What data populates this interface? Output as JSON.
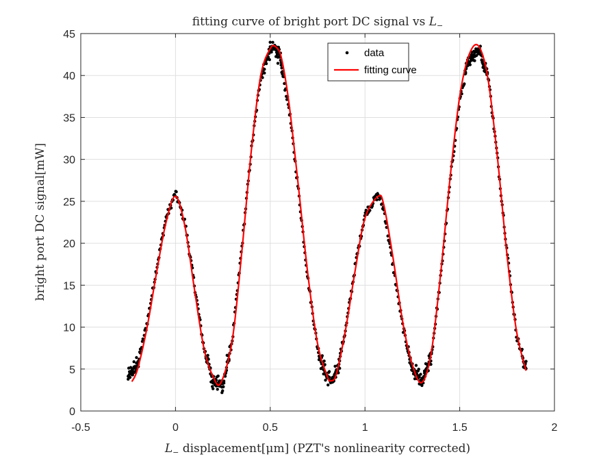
{
  "chart_data": {
    "type": "scatter",
    "title": "fitting curve of bright port DC signal vs",
    "title_symbol": "L",
    "title_symbol_sub": "−",
    "xlabel_symbol": "L",
    "xlabel_symbol_sub": "−",
    "xlabel": " displacement[μm] (PZT's nonlinearity corrected)",
    "ylabel": "bright port DC signal[mW]",
    "xlim": [
      -0.5,
      2
    ],
    "ylim": [
      0,
      45
    ],
    "xticks": [
      -0.5,
      0,
      0.5,
      1,
      1.5,
      2
    ],
    "xtick_labels": [
      "-0.5",
      "0",
      "0.5",
      "1",
      "1.5",
      "2"
    ],
    "yticks": [
      0,
      5,
      10,
      15,
      20,
      25,
      30,
      35,
      40,
      45
    ],
    "ytick_labels": [
      "0",
      "5",
      "10",
      "15",
      "20",
      "25",
      "30",
      "35",
      "40",
      "45"
    ],
    "grid": true,
    "legend_position": "top-center",
    "series": [
      {
        "name": "data",
        "style": "markers",
        "color": "#000000",
        "x_range": [
          -0.25,
          1.85
        ],
        "x": [
          -0.25,
          -0.2,
          -0.15,
          -0.1,
          -0.05,
          0.0,
          0.05,
          0.1,
          0.15,
          0.2,
          0.25,
          0.3,
          0.35,
          0.4,
          0.45,
          0.5,
          0.53,
          0.55,
          0.6,
          0.65,
          0.7,
          0.75,
          0.8,
          0.83,
          0.85,
          0.9,
          0.95,
          1.0,
          1.07,
          1.1,
          1.15,
          1.2,
          1.25,
          1.3,
          1.35,
          1.4,
          1.45,
          1.5,
          1.55,
          1.6,
          1.65,
          1.7,
          1.75,
          1.8,
          1.85
        ],
        "y": [
          4.0,
          5.5,
          10.5,
          17.0,
          23.0,
          26.0,
          22.5,
          15.0,
          7.5,
          3.5,
          3.0,
          8.5,
          19.5,
          31.0,
          40.0,
          43.0,
          43.3,
          42.0,
          36.0,
          26.0,
          15.5,
          7.5,
          4.0,
          3.5,
          4.5,
          10.0,
          17.5,
          23.5,
          25.8,
          24.0,
          17.0,
          10.0,
          5.0,
          3.2,
          6.5,
          16.0,
          27.5,
          37.0,
          42.0,
          43.2,
          40.0,
          30.0,
          19.0,
          9.0,
          5.0
        ]
      },
      {
        "name": "fitting curve",
        "style": "line",
        "color": "#ff0000",
        "x": [
          -0.23,
          -0.2,
          -0.15,
          -0.1,
          -0.05,
          0.0,
          0.05,
          0.1,
          0.15,
          0.2,
          0.24,
          0.3,
          0.35,
          0.4,
          0.45,
          0.5,
          0.53,
          0.56,
          0.6,
          0.65,
          0.7,
          0.75,
          0.8,
          0.82,
          0.85,
          0.9,
          0.95,
          1.0,
          1.07,
          1.1,
          1.15,
          1.2,
          1.25,
          1.3,
          1.35,
          1.4,
          1.45,
          1.5,
          1.55,
          1.6,
          1.65,
          1.7,
          1.75,
          1.8,
          1.85
        ],
        "y": [
          3.5,
          5.0,
          10.0,
          16.5,
          22.5,
          25.6,
          22.0,
          14.5,
          7.5,
          4.0,
          3.4,
          8.5,
          19.0,
          31.0,
          40.0,
          43.2,
          43.4,
          42.0,
          36.5,
          26.5,
          16.0,
          8.0,
          4.2,
          3.6,
          4.5,
          10.0,
          17.0,
          23.0,
          25.6,
          24.5,
          18.0,
          10.5,
          5.5,
          3.4,
          7.0,
          16.5,
          28.0,
          37.5,
          42.5,
          43.5,
          39.5,
          30.0,
          18.5,
          9.5,
          4.8
        ]
      }
    ]
  }
}
